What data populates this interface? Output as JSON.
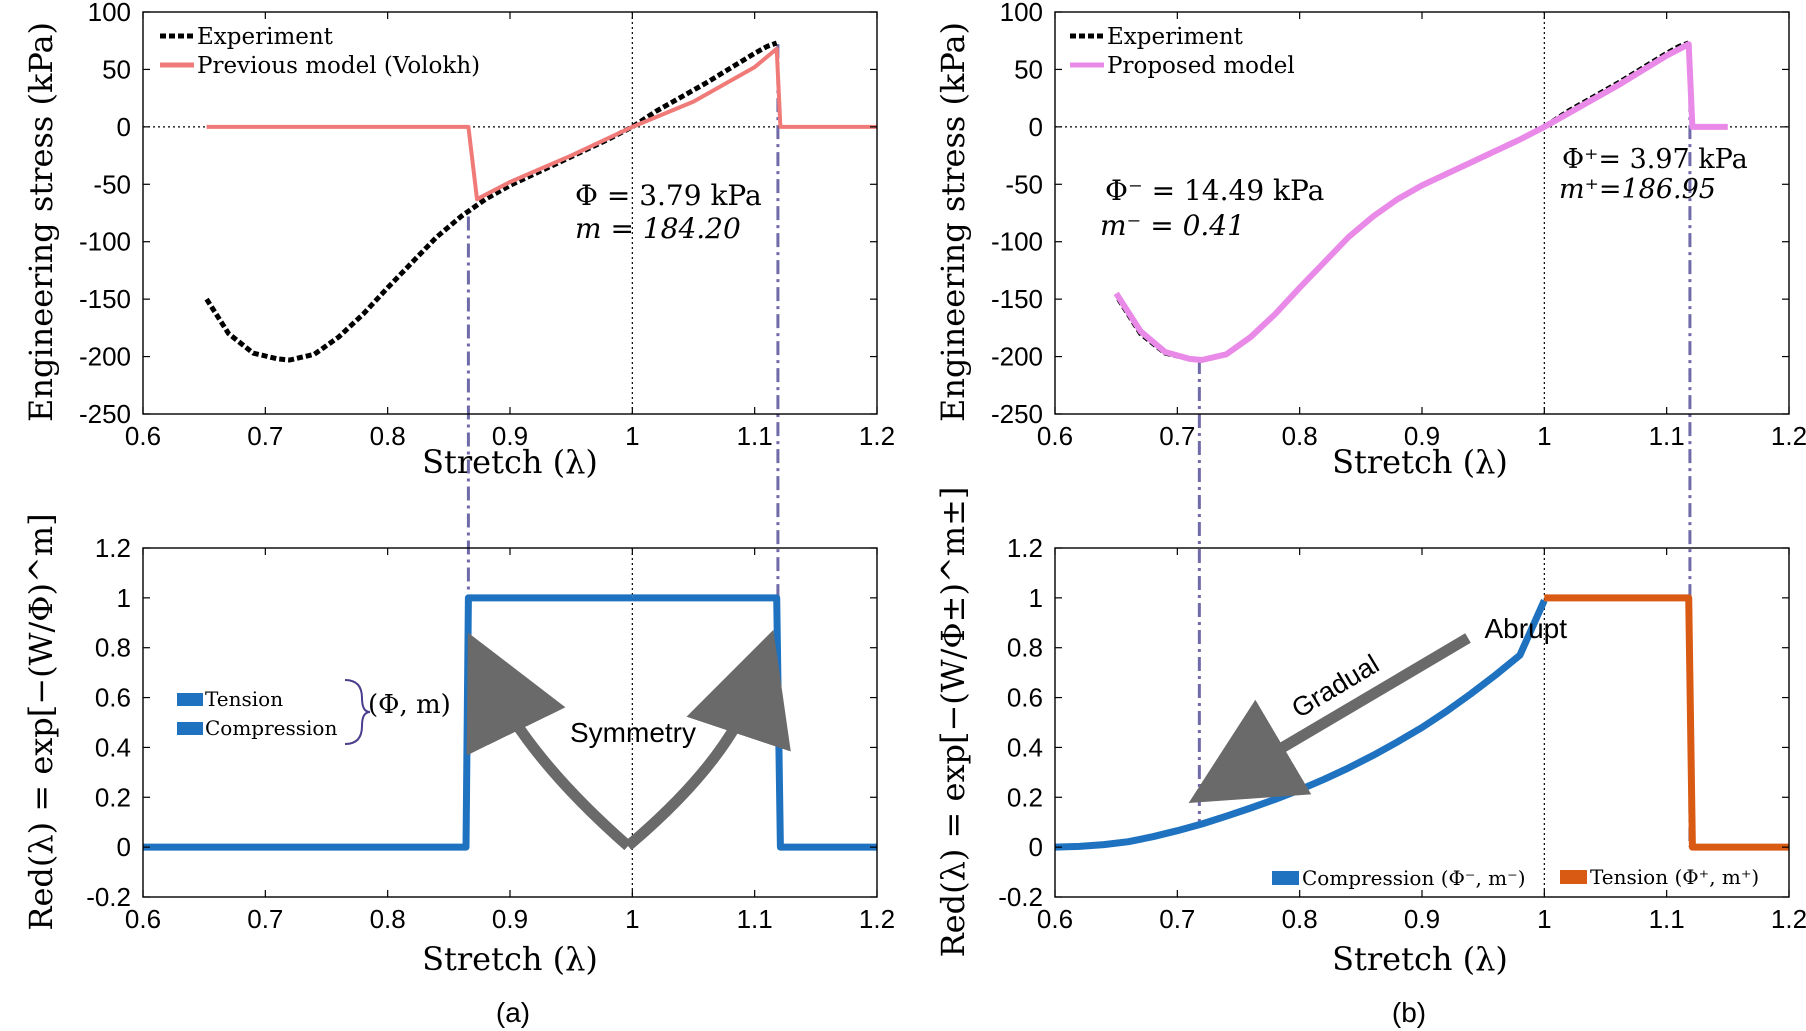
{
  "colors": {
    "experiment": "#000000",
    "volokh": "#f07a78",
    "proposed": "#e98ae8",
    "compression": "#1e72c0",
    "tension": "#d95a12",
    "guide": "#6f6aa8",
    "arrow": "#6a6a6a"
  },
  "panel_labels": {
    "a": "(a)",
    "b": "(b)"
  },
  "chart_data": [
    {
      "id": "a-top",
      "type": "line",
      "xlabel": "Stretch (λ)",
      "ylabel": "Engineering stress (kPa)",
      "xlim": [
        0.6,
        1.2
      ],
      "ylim": [
        -250,
        100
      ],
      "xticks": [
        "0.6",
        "0.7",
        "0.8",
        "0.9",
        "1",
        "1.1",
        "1.2"
      ],
      "yticks": [
        "100",
        "50",
        "0",
        "-50",
        "-100",
        "-150",
        "-200",
        "-250"
      ],
      "legend": {
        "position": "top-left",
        "entries": [
          "Experiment",
          "Previous model (Volokh)"
        ]
      },
      "annotations": [
        "Φ = 3.79 kPa",
        "m = 184.20"
      ],
      "series": [
        {
          "name": "Experiment",
          "style": "dotted",
          "x": [
            0.652,
            0.67,
            0.69,
            0.71,
            0.72,
            0.74,
            0.76,
            0.78,
            0.8,
            0.82,
            0.84,
            0.86,
            0.88,
            0.9,
            0.92,
            0.94,
            0.96,
            0.98,
            1.0,
            1.02,
            1.04,
            1.06,
            1.08,
            1.1,
            1.11,
            1.118
          ],
          "y": [
            -150,
            -180,
            -197,
            -202,
            -203,
            -198,
            -183,
            -163,
            -140,
            -118,
            -96,
            -78,
            -63,
            -51,
            -41,
            -31,
            -21,
            -11,
            0,
            14,
            26,
            38,
            51,
            64,
            70,
            73
          ]
        },
        {
          "name": "Previous model (Volokh)",
          "style": "solid",
          "x": [
            0.652,
            0.866,
            0.873,
            0.9,
            0.95,
            1.0,
            1.05,
            1.1,
            1.118,
            1.121,
            1.2
          ],
          "y": [
            0,
            0,
            -63,
            -48,
            -25,
            0,
            22,
            52,
            68,
            0,
            0
          ]
        }
      ]
    },
    {
      "id": "b-top",
      "type": "line",
      "xlabel": "Stretch (λ)",
      "ylabel": "Engineering stress (kPa)",
      "xlim": [
        0.6,
        1.2
      ],
      "ylim": [
        -250,
        100
      ],
      "xticks": [
        "0.6",
        "0.7",
        "0.8",
        "0.9",
        "1",
        "1.1",
        "1.2"
      ],
      "yticks": [
        "100",
        "50",
        "0",
        "-50",
        "-100",
        "-150",
        "-200",
        "-250"
      ],
      "legend": {
        "position": "top-left",
        "entries": [
          "Experiment",
          "Proposed model"
        ]
      },
      "annotations": [
        "Φ⁻ = 14.49 kPa",
        "m⁻ = 0.41",
        "Φ⁺= 3.97 kPa",
        "m⁺=186.95"
      ],
      "series": [
        {
          "name": "Experiment",
          "style": "dotted",
          "x": [
            0.652,
            0.67,
            0.69,
            0.71,
            0.72,
            0.74,
            0.76,
            0.78,
            0.8,
            0.82,
            0.84,
            0.86,
            0.88,
            0.9,
            0.92,
            0.94,
            0.96,
            0.98,
            1.0,
            1.02,
            1.04,
            1.06,
            1.08,
            1.1,
            1.11,
            1.118
          ],
          "y": [
            -150,
            -180,
            -197,
            -202,
            -203,
            -198,
            -183,
            -163,
            -140,
            -118,
            -96,
            -78,
            -63,
            -51,
            -41,
            -31,
            -21,
            -11,
            0,
            14,
            26,
            38,
            51,
            64,
            70,
            73
          ]
        },
        {
          "name": "Proposed model",
          "style": "solid",
          "x": [
            0.65,
            0.67,
            0.69,
            0.71,
            0.72,
            0.74,
            0.76,
            0.78,
            0.8,
            0.82,
            0.84,
            0.86,
            0.88,
            0.9,
            0.92,
            0.94,
            0.96,
            0.98,
            1.0,
            1.02,
            1.04,
            1.06,
            1.08,
            1.1,
            1.118,
            1.121,
            1.15
          ],
          "y": [
            -145,
            -178,
            -196,
            -202,
            -203,
            -198,
            -183,
            -163,
            -140,
            -118,
            -96,
            -78,
            -63,
            -51,
            -41,
            -31,
            -21,
            -11,
            0,
            12,
            24,
            36,
            49,
            62,
            72,
            0,
            0
          ]
        }
      ]
    },
    {
      "id": "a-bottom",
      "type": "line",
      "xlabel": "Stretch (λ)",
      "ylabel": "Red(λ) = exp[−(W/Φ)^m]",
      "xlim": [
        0.6,
        1.2
      ],
      "ylim": [
        -0.2,
        1.2
      ],
      "xticks": [
        "0.6",
        "0.7",
        "0.8",
        "0.9",
        "1",
        "1.1",
        "1.2"
      ],
      "yticks": [
        "1.2",
        "1",
        "0.8",
        "0.6",
        "0.4",
        "0.2",
        "0",
        "-0.2"
      ],
      "legend": {
        "position": "center-left",
        "entries": [
          "Tension",
          "Compression"
        ]
      },
      "annotations": [
        "(Φ, m)",
        "Symmetry"
      ],
      "series": [
        {
          "name": "Compression",
          "style": "solid",
          "x": [
            0.6,
            0.864,
            0.866,
            1.0
          ],
          "y": [
            0,
            0,
            1,
            1
          ]
        },
        {
          "name": "Tension",
          "style": "solid",
          "x": [
            1.0,
            1.118,
            1.121,
            1.2
          ],
          "y": [
            1,
            1,
            0,
            0
          ]
        }
      ]
    },
    {
      "id": "b-bottom",
      "type": "line",
      "xlabel": "Stretch (λ)",
      "ylabel": "Red(λ) = exp[−(W/Φ±)^m±]",
      "xlim": [
        0.6,
        1.2
      ],
      "ylim": [
        -0.2,
        1.2
      ],
      "xticks": [
        "0.6",
        "0.7",
        "0.8",
        "0.9",
        "1",
        "1.1",
        "1.2"
      ],
      "yticks": [
        "1.2",
        "1",
        "0.8",
        "0.6",
        "0.4",
        "0.2",
        "0",
        "-0.2"
      ],
      "legend": {
        "position": "bottom-right",
        "entries": [
          "Compression (Φ⁻, m⁻)",
          "Tension (Φ⁺, m⁺)"
        ]
      },
      "annotations": [
        "Gradual",
        "Abrupt"
      ],
      "series": [
        {
          "name": "Compression (Φ⁻, m⁻)",
          "style": "solid",
          "x": [
            0.6,
            0.62,
            0.64,
            0.66,
            0.68,
            0.7,
            0.72,
            0.74,
            0.76,
            0.78,
            0.8,
            0.82,
            0.84,
            0.86,
            0.88,
            0.9,
            0.92,
            0.94,
            0.96,
            0.98,
            1.0
          ],
          "y": [
            0.0,
            0.003,
            0.01,
            0.022,
            0.042,
            0.066,
            0.093,
            0.124,
            0.157,
            0.192,
            0.23,
            0.272,
            0.318,
            0.368,
            0.422,
            0.48,
            0.545,
            0.615,
            0.69,
            0.77,
            0.99
          ]
        },
        {
          "name": "Tension (Φ⁺, m⁺)",
          "style": "solid",
          "x": [
            1.0,
            1.118,
            1.121,
            1.2
          ],
          "y": [
            1,
            1,
            0,
            0
          ]
        }
      ]
    }
  ]
}
